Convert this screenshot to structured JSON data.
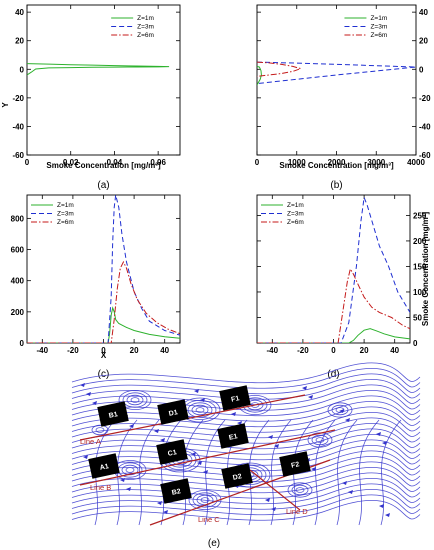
{
  "chart_data": [
    {
      "id": "a",
      "type": "line",
      "caption": "(a)",
      "xlabel": "Smoke Concentration [mg/m³]",
      "ylabel": "Y",
      "xlim": [
        0,
        0.07
      ],
      "ylim": [
        -60,
        45
      ],
      "xticks": [
        0,
        0.02,
        0.04,
        0.06
      ],
      "xtick_labels": [
        "0",
        "0.02",
        "0.04",
        "0.06"
      ],
      "yticks": [
        -60,
        -40,
        -20,
        0,
        20,
        40
      ],
      "ytick_labels": [
        "-60",
        "-40",
        "-20",
        "0",
        "20",
        "40"
      ],
      "legend_position": "top-right",
      "series": [
        {
          "name": "Z=1m",
          "color": "#2db22d",
          "dash": "solid",
          "points": [
            [
              0,
              4
            ],
            [
              0.01,
              3.6
            ],
            [
              0.02,
              3.2
            ],
            [
              0.03,
              2.9
            ],
            [
              0.04,
              2.6
            ],
            [
              0.05,
              2.3
            ],
            [
              0.06,
              2.0
            ],
            [
              0.065,
              1.9
            ],
            [
              0.06,
              1.7
            ],
            [
              0.05,
              1.6
            ],
            [
              0.04,
              1.5
            ],
            [
              0.03,
              1.4
            ],
            [
              0.02,
              1.2
            ],
            [
              0.01,
              1.0
            ],
            [
              0.004,
              0.2
            ],
            [
              0.002,
              -2
            ],
            [
              0,
              -4
            ]
          ]
        },
        {
          "name": "Z=3m",
          "color": "#1f2fd1",
          "dash": "dashed",
          "points": []
        },
        {
          "name": "Z=6m",
          "color": "#c41a1a",
          "dash": "dashdot",
          "points": []
        }
      ]
    },
    {
      "id": "b",
      "type": "line",
      "caption": "(b)",
      "xlabel": "Smoke Concentration [mg/m³]",
      "ylabel": "",
      "xlim": [
        0,
        4000
      ],
      "ylim": [
        -60,
        45
      ],
      "xticks": [
        0,
        1000,
        2000,
        3000,
        4000
      ],
      "xtick_labels": [
        "0",
        "1000",
        "2000",
        "3000",
        "4000"
      ],
      "yticks": [
        -60,
        -40,
        -20,
        0,
        20,
        40
      ],
      "ytick_labels": [
        "-60",
        "-40",
        "-20",
        "0",
        "20",
        "40"
      ],
      "legend_position": "top-right",
      "series": [
        {
          "name": "Z=1m",
          "color": "#2db22d",
          "dash": "solid",
          "points": [
            [
              0,
              2
            ],
            [
              60,
              1.5
            ],
            [
              100,
              -1
            ],
            [
              110,
              -4
            ],
            [
              80,
              -7
            ],
            [
              40,
              -9
            ],
            [
              0,
              -11
            ]
          ]
        },
        {
          "name": "Z=3m",
          "color": "#1f2fd1",
          "dash": "dashed",
          "points": [
            [
              0,
              5
            ],
            [
              500,
              4.7
            ],
            [
              1000,
              4.3
            ],
            [
              1500,
              3.9
            ],
            [
              2000,
              3.5
            ],
            [
              2500,
              3.0
            ],
            [
              3000,
              2.5
            ],
            [
              3500,
              2.0
            ],
            [
              4000,
              1.6
            ],
            [
              3500,
              0.2
            ],
            [
              3000,
              -1.2
            ],
            [
              2500,
              -2.6
            ],
            [
              2000,
              -4
            ],
            [
              1500,
              -5.5
            ],
            [
              1000,
              -7
            ],
            [
              500,
              -8.5
            ],
            [
              0,
              -10
            ]
          ]
        },
        {
          "name": "Z=6m",
          "color": "#c41a1a",
          "dash": "dashdot",
          "points": [
            [
              0,
              5
            ],
            [
              300,
              4.5
            ],
            [
              600,
              3.5
            ],
            [
              900,
              2.0
            ],
            [
              1100,
              0.5
            ],
            [
              900,
              -1.5
            ],
            [
              600,
              -3
            ],
            [
              300,
              -4
            ],
            [
              0,
              -5
            ]
          ]
        }
      ]
    },
    {
      "id": "c",
      "type": "line",
      "caption": "(c)",
      "xlabel": "X",
      "ylabel": "",
      "xlim": [
        -50,
        50
      ],
      "ylim": [
        0,
        950
      ],
      "xticks": [
        -40,
        -20,
        0,
        20,
        40
      ],
      "xtick_labels": [
        "-40",
        "-20",
        "0",
        "20",
        "40"
      ],
      "yticks": [
        0,
        200,
        400,
        600,
        800
      ],
      "ytick_labels": [
        "0",
        "200",
        "400",
        "600",
        "800"
      ],
      "legend_position": "top-left",
      "series": [
        {
          "name": "Z=1m",
          "color": "#2db22d",
          "dash": "solid",
          "points": [
            [
              -50,
              0
            ],
            [
              3,
              0
            ],
            [
              4,
              60
            ],
            [
              5,
              180
            ],
            [
              6,
              225
            ],
            [
              7,
              200
            ],
            [
              8,
              150
            ],
            [
              10,
              125
            ],
            [
              15,
              100
            ],
            [
              20,
              80
            ],
            [
              30,
              55
            ],
            [
              40,
              40
            ],
            [
              50,
              30
            ]
          ]
        },
        {
          "name": "Z=3m",
          "color": "#1f2fd1",
          "dash": "dashed",
          "points": [
            [
              -50,
              0
            ],
            [
              3,
              0
            ],
            [
              5,
              300
            ],
            [
              6,
              650
            ],
            [
              7,
              870
            ],
            [
              8,
              950
            ],
            [
              10,
              870
            ],
            [
              12,
              700
            ],
            [
              15,
              520
            ],
            [
              20,
              330
            ],
            [
              25,
              220
            ],
            [
              30,
              140
            ],
            [
              40,
              80
            ],
            [
              50,
              50
            ]
          ]
        },
        {
          "name": "Z=6m",
          "color": "#c41a1a",
          "dash": "dashdot",
          "points": [
            [
              -50,
              0
            ],
            [
              5,
              0
            ],
            [
              7,
              150
            ],
            [
              9,
              350
            ],
            [
              11,
              480
            ],
            [
              13,
              520
            ],
            [
              15,
              480
            ],
            [
              18,
              380
            ],
            [
              22,
              280
            ],
            [
              28,
              190
            ],
            [
              35,
              130
            ],
            [
              42,
              90
            ],
            [
              50,
              60
            ]
          ]
        }
      ]
    },
    {
      "id": "d",
      "type": "line",
      "caption": "(d)",
      "xlabel": "",
      "ylabel": "Smoke Concentration [mg/m³]",
      "xlim": [
        -50,
        50
      ],
      "ylim": [
        0,
        290
      ],
      "xticks": [
        -40,
        -20,
        0,
        20,
        40
      ],
      "xtick_labels": [
        "-40",
        "-20",
        "0",
        "20",
        "40"
      ],
      "yticks": [
        0,
        50,
        100,
        150,
        200,
        250
      ],
      "ytick_labels": [
        "0",
        "50",
        "100",
        "150",
        "200",
        "250"
      ],
      "legend_position": "top-left",
      "series": [
        {
          "name": "Z=1m",
          "color": "#2db22d",
          "dash": "solid",
          "points": [
            [
              -50,
              0
            ],
            [
              10,
              0
            ],
            [
              13,
              5
            ],
            [
              16,
              15
            ],
            [
              20,
              25
            ],
            [
              24,
              28
            ],
            [
              28,
              24
            ],
            [
              33,
              18
            ],
            [
              40,
              12
            ],
            [
              50,
              8
            ]
          ]
        },
        {
          "name": "Z=3m",
          "color": "#1f2fd1",
          "dash": "dashed",
          "points": [
            [
              -50,
              0
            ],
            [
              5,
              0
            ],
            [
              10,
              40
            ],
            [
              15,
              150
            ],
            [
              18,
              240
            ],
            [
              20,
              285
            ],
            [
              22,
              270
            ],
            [
              26,
              230
            ],
            [
              30,
              190
            ],
            [
              36,
              150
            ],
            [
              42,
              100
            ],
            [
              50,
              60
            ]
          ]
        },
        {
          "name": "Z=6m",
          "color": "#c41a1a",
          "dash": "dashdot",
          "points": [
            [
              -50,
              0
            ],
            [
              3,
              0
            ],
            [
              6,
              60
            ],
            [
              9,
              120
            ],
            [
              11,
              145
            ],
            [
              13,
              135
            ],
            [
              16,
              115
            ],
            [
              20,
              90
            ],
            [
              25,
              70
            ],
            [
              30,
              60
            ],
            [
              38,
              50
            ],
            [
              45,
              35
            ],
            [
              50,
              28
            ]
          ]
        }
      ]
    }
  ],
  "panel_e": {
    "caption": "(e)",
    "zones": [
      "B1",
      "D1",
      "F1",
      "A1",
      "C1",
      "E1",
      "F2",
      "D2",
      "B2"
    ],
    "lines": [
      "Line A",
      "Line B",
      "Line C",
      "Line D"
    ],
    "colors": {
      "streamline": "#3333cc",
      "zone": "#000000",
      "line": "#b22222"
    }
  }
}
